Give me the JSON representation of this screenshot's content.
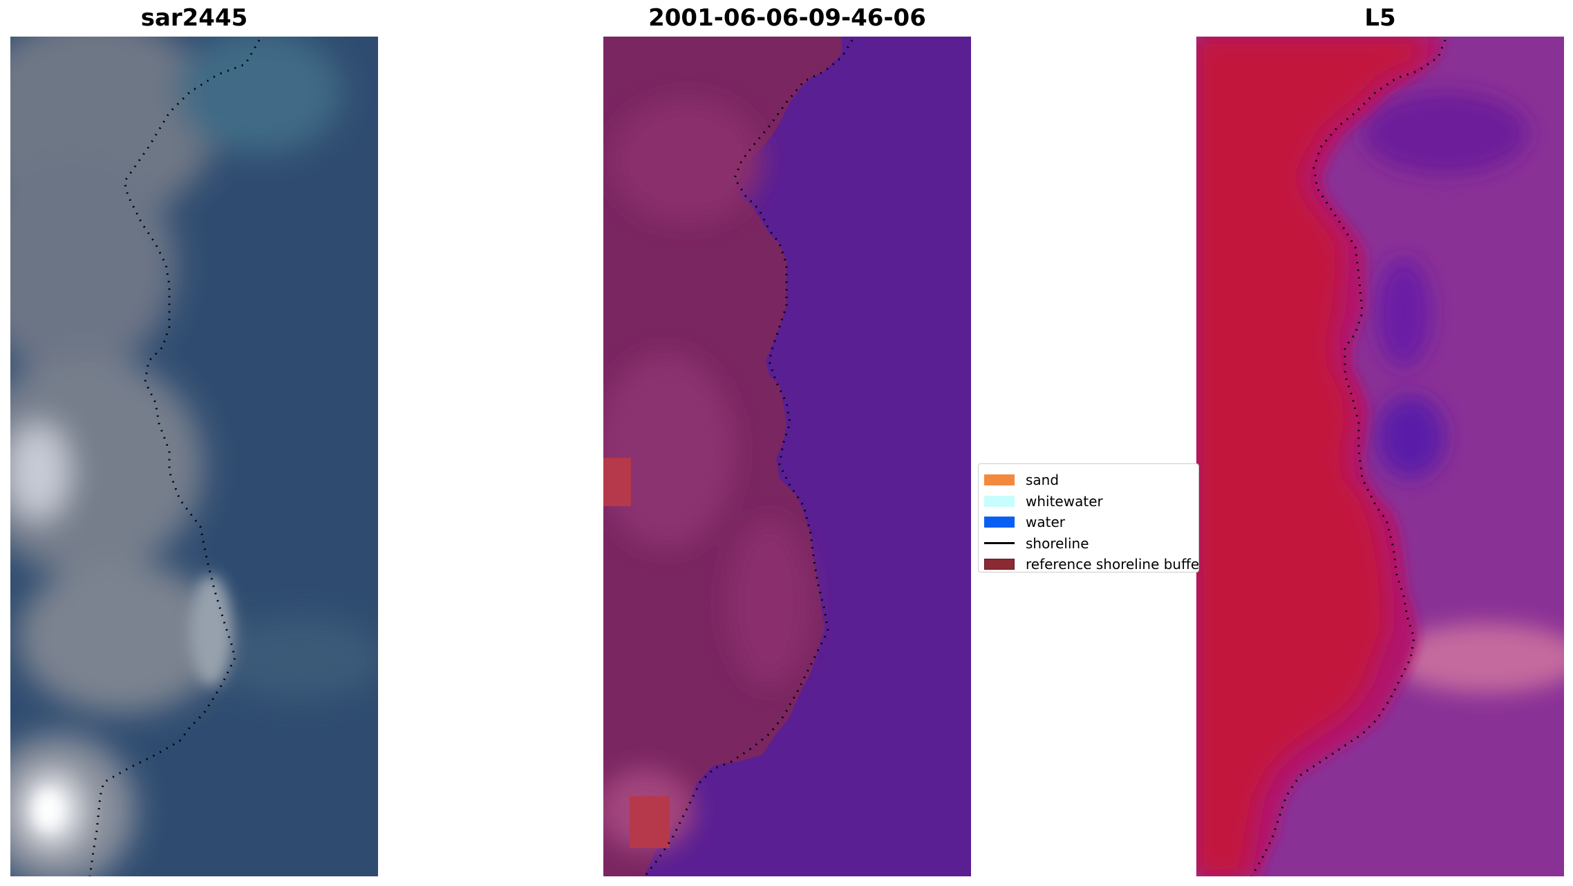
{
  "panels": [
    {
      "title": "sar2445",
      "name": "rgb-image"
    },
    {
      "title": "2001-06-06-09-46-06",
      "name": "classified-image"
    },
    {
      "title": "L5",
      "name": "index-image"
    }
  ],
  "legend": [
    {
      "label": "sand",
      "color": "#f4893e"
    },
    {
      "label": "whitewater",
      "color": "#c8fdfd"
    },
    {
      "label": "water",
      "color": "#0a5ff3"
    },
    {
      "label": "shoreline",
      "color": "#000000",
      "kind": "line"
    },
    {
      "label": "reference shoreline buffer",
      "color": "#8c2a33"
    }
  ]
}
